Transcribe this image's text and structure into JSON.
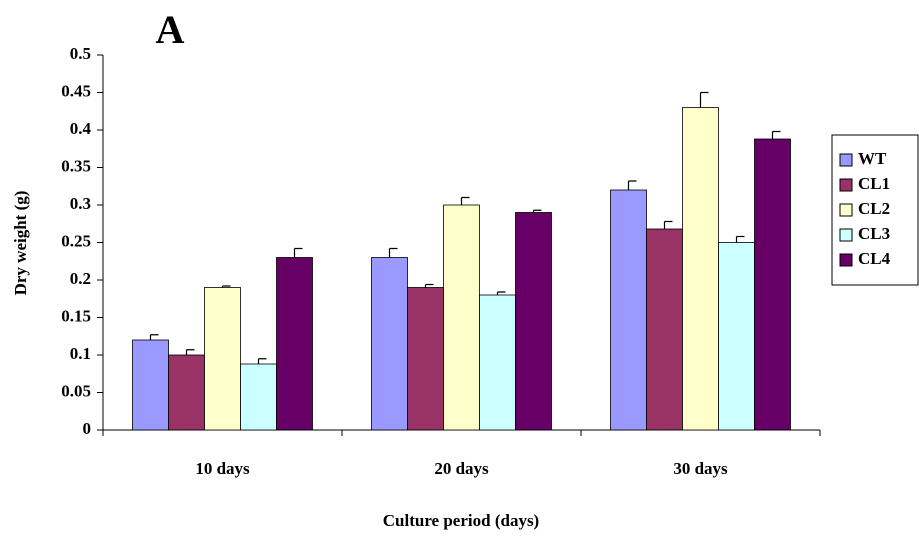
{
  "chart_data": {
    "type": "bar",
    "title": "A",
    "x_label": "Culture period (days)",
    "y_label": "Dry weight (g)",
    "categories": [
      "10 days",
      "20 days",
      "30 days"
    ],
    "series": [
      {
        "name": "WT",
        "color": "#9999ff",
        "values": [
          0.12,
          0.23,
          0.32
        ],
        "errors": [
          0.007,
          0.012,
          0.012
        ]
      },
      {
        "name": "CL1",
        "color": "#993366",
        "values": [
          0.1,
          0.19,
          0.268
        ],
        "errors": [
          0.007,
          0.004,
          0.01
        ]
      },
      {
        "name": "CL2",
        "color": "#ffffcc",
        "values": [
          0.19,
          0.3,
          0.43
        ],
        "errors": [
          0.002,
          0.01,
          0.02
        ]
      },
      {
        "name": "CL3",
        "color": "#ccffff",
        "values": [
          0.088,
          0.18,
          0.25
        ],
        "errors": [
          0.007,
          0.004,
          0.008
        ]
      },
      {
        "name": "CL4",
        "color": "#660066",
        "values": [
          0.23,
          0.29,
          0.388
        ],
        "errors": [
          0.012,
          0.003,
          0.01
        ]
      }
    ],
    "ylim": [
      0,
      0.5
    ],
    "yticks": [
      0,
      0.05,
      0.1,
      0.15,
      0.2,
      0.25,
      0.3,
      0.35,
      0.4,
      0.45,
      0.5
    ],
    "grid": false,
    "legend": "right"
  }
}
